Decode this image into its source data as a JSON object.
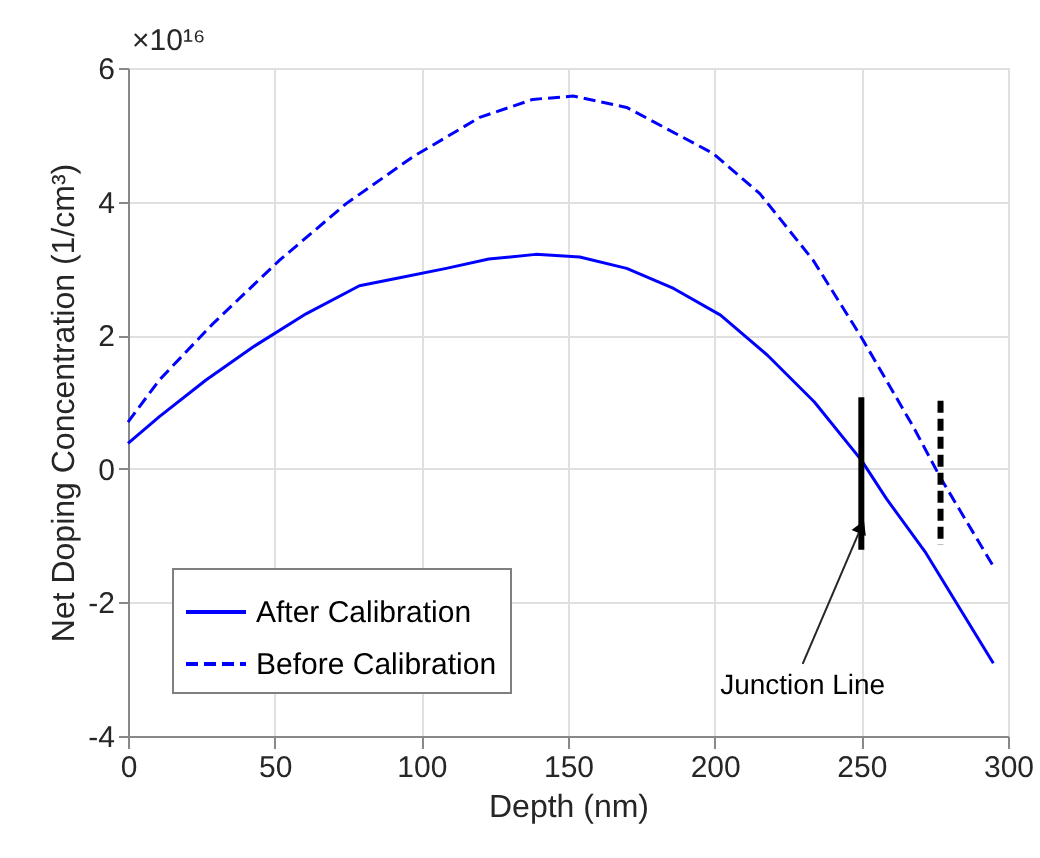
{
  "chart_data": {
    "type": "line",
    "xlabel": "Depth (nm)",
    "ylabel": "Net Doping Concentration (1/cm³)",
    "xlim": [
      0,
      300
    ],
    "xticks": [
      0,
      50,
      100,
      150,
      200,
      250,
      300
    ],
    "ylim": [
      -4,
      6
    ],
    "yticks": [
      -4,
      -2,
      0,
      2,
      4,
      6
    ],
    "grid": true,
    "legend": "bottom left",
    "marker": "none",
    "annotations": [
      "×10¹⁶",
      {
        "text": "Junction Line",
        "x": 250,
        "y": -0.87
      }
    ],
    "series": [
      {
        "name": "After Calibration",
        "color": "#0000ff",
        "line_style": "solid",
        "x": [
          0,
          10.7,
          26.6,
          42.5,
          60.7,
          78.9,
          92.6,
          108.5,
          123,
          139,
          154,
          170,
          186,
          202,
          218,
          234,
          250,
          258.6,
          272,
          295
        ],
        "values": [
          0.38,
          0.78,
          1.33,
          1.82,
          2.32,
          2.74,
          2.86,
          3.0,
          3.14,
          3.21,
          3.17,
          3.0,
          2.7,
          2.3,
          1.7,
          1.0,
          0.13,
          -0.45,
          -1.26,
          -2.91
        ]
      },
      {
        "name": "Before Calibration",
        "color": "#0000ff",
        "line_style": "dashed",
        "x": [
          0,
          10.7,
          28.9,
          51.6,
          74.4,
          97.1,
          119.9,
          138,
          151.7,
          170,
          199.5,
          215.4,
          233.6,
          250,
          267.7,
          276.8,
          295
        ],
        "values": [
          0.7,
          1.33,
          2.17,
          3.12,
          3.97,
          4.67,
          5.26,
          5.53,
          5.58,
          5.41,
          4.72,
          4.12,
          3.12,
          1.97,
          0.63,
          -0.12,
          -1.46
        ]
      },
      {
        "color": "#000000",
        "line_style": "solid",
        "x": [
          250,
          250
        ],
        "values": [
          1.07,
          -1.21
        ]
      },
      {
        "color": "#000000",
        "line_style": "dashed",
        "x": [
          277,
          277
        ],
        "values": [
          1.02,
          -1.14
        ]
      }
    ]
  }
}
